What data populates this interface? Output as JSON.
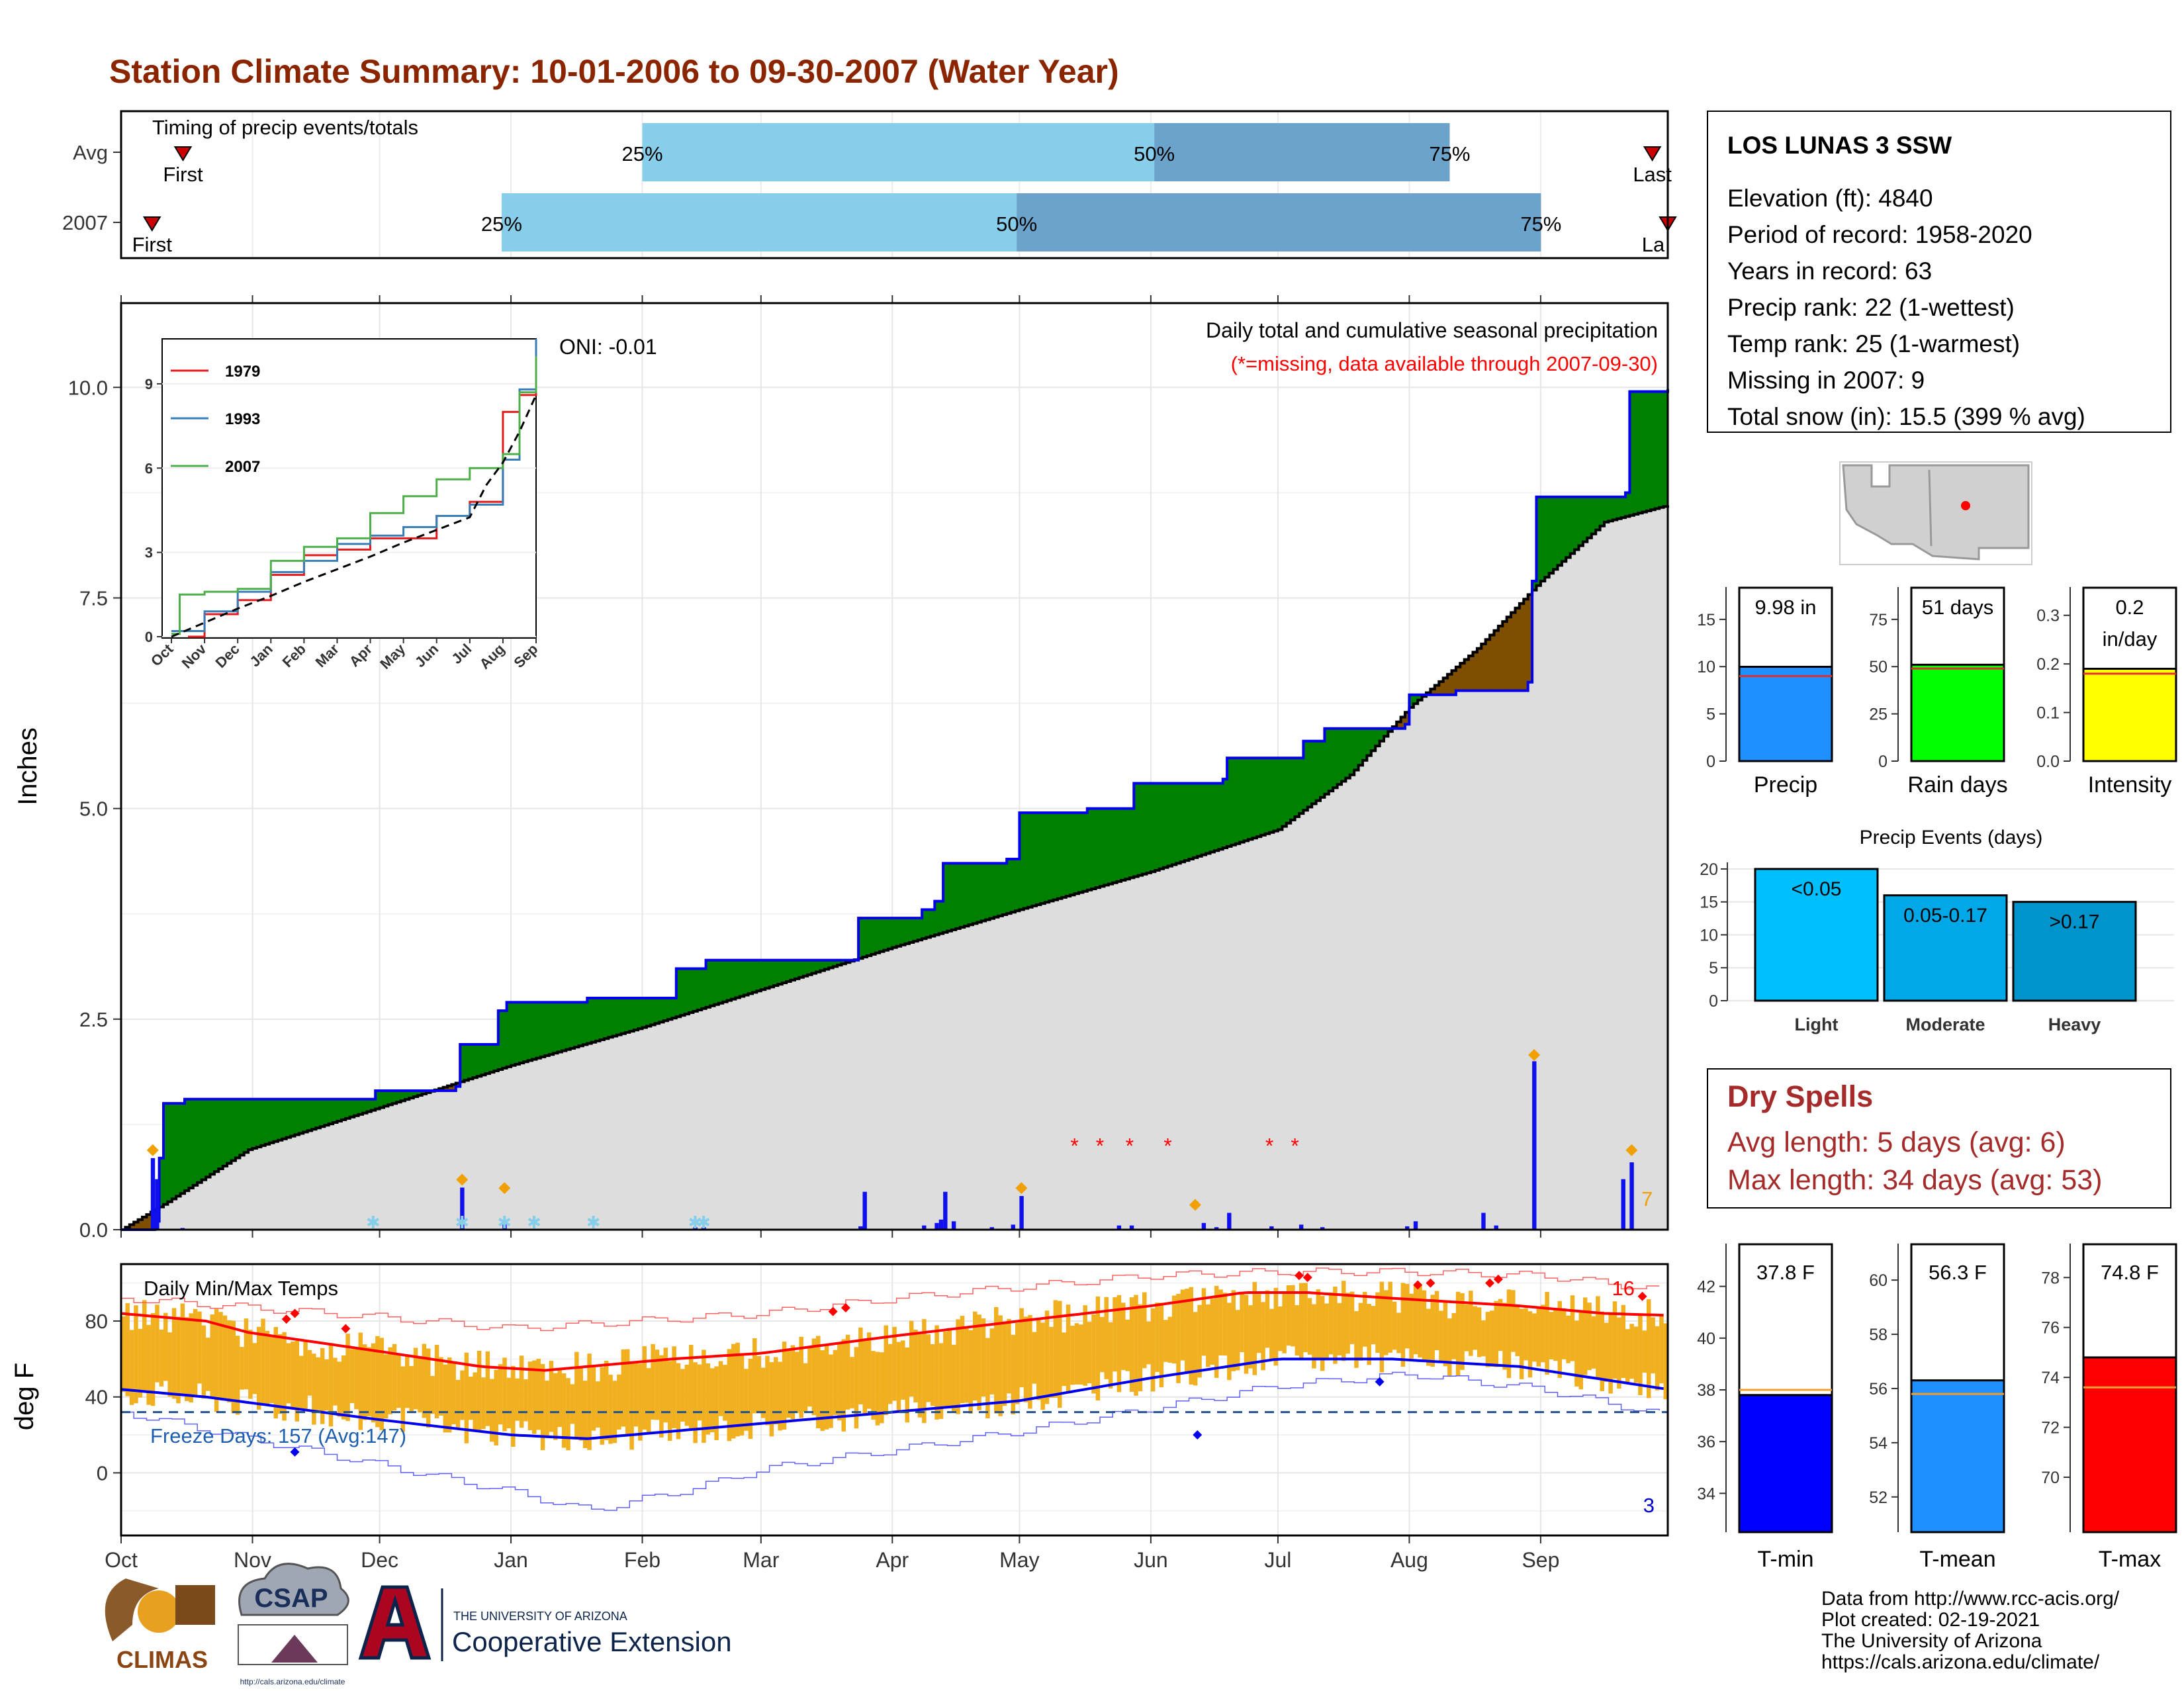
{
  "page": {
    "title": "Station Climate Summary: 10-01-2006 to 09-30-2007 (Water Year)",
    "credits": [
      "Data from http://www.rcc-acis.org/",
      "Plot created: 02-19-2021",
      "The University of Arizona",
      "https://cals.arizona.edu/climate/"
    ],
    "logos": {
      "climas": "CLIMAS",
      "csap": "CSAP",
      "csap_url": "http://cals.arizona.edu/climate",
      "ua_line1": "THE UNIVERSITY OF ARIZONA",
      "ua_line2": "Cooperative Extension"
    },
    "colors": {
      "title": "#8B2500",
      "green": "#008000",
      "brown": "#7F4F00",
      "grey": "#DDDDDD",
      "bar_blue": "#1010EE",
      "orange": "#F0A000",
      "light_blue": "#87CEEB",
      "mid_blue": "#6BA3CB",
      "red": "#FF0000",
      "dry_red": "#A52A2A"
    }
  },
  "station": {
    "name": "LOS LUNAS 3 SSW",
    "lines": [
      "Elevation (ft): 4840",
      "Period of record: 1958-2020",
      "Years in record: 63",
      "Precip rank: 22 (1-wettest)",
      "Temp rank: 25 (1-warmest)",
      "Missing in 2007: 9",
      "Total snow (in): 15.5 (399 % avg)"
    ]
  },
  "chart_data": [
    {
      "id": "timing",
      "type": "bar",
      "title": "Timing of precip events/totals",
      "rows": [
        {
          "label": "Avg",
          "first": "First",
          "last": "Last",
          "q25_label": "25%",
          "q50_label": "50%",
          "q75_label": "75%",
          "q25": 0.337,
          "q50": 0.668,
          "q75": 0.859,
          "first_pos": 0.04,
          "last_pos": 0.99
        },
        {
          "label": "2007",
          "first": "First",
          "last": "La",
          "q25_label": "25%",
          "q50_label": "50%",
          "q75_label": "75%",
          "q25": 0.246,
          "q50": 0.579,
          "q75": 0.918,
          "first_pos": 0.02,
          "last_pos": 1.0
        }
      ]
    },
    {
      "id": "precip_main",
      "type": "area",
      "title": "Daily total and cumulative seasonal precipitation",
      "subtitle": "(*=missing, data available through 2007-09-30)",
      "oni": "ONI: -0.01",
      "ylabel": "Inches",
      "ylim": [
        0,
        11
      ],
      "yticks": [
        "0.0",
        "2.5",
        "5.0",
        "7.5",
        "10.0"
      ],
      "months": [
        "Oct",
        "Nov",
        "Dec",
        "Jan",
        "Feb",
        "Mar",
        "Apr",
        "May",
        "Jun",
        "Jul",
        "Aug",
        "Sep"
      ],
      "month_start_days": [
        0,
        31,
        61,
        92,
        123,
        151,
        182,
        212,
        243,
        273,
        304,
        335
      ],
      "ndays": 365,
      "avg_cumulative": [
        [
          0,
          0
        ],
        [
          10,
          0.3
        ],
        [
          30,
          0.95
        ],
        [
          61,
          1.45
        ],
        [
          92,
          1.95
        ],
        [
          123,
          2.4
        ],
        [
          151,
          2.85
        ],
        [
          182,
          3.35
        ],
        [
          212,
          3.8
        ],
        [
          243,
          4.25
        ],
        [
          273,
          4.75
        ],
        [
          290,
          5.4
        ],
        [
          304,
          6.2
        ],
        [
          320,
          6.9
        ],
        [
          335,
          7.7
        ],
        [
          350,
          8.4
        ],
        [
          365,
          8.6
        ]
      ],
      "cumulative_2007": [
        [
          0,
          0
        ],
        [
          8,
          0.1
        ],
        [
          9,
          0.85
        ],
        [
          10,
          1.5
        ],
        [
          15,
          1.55
        ],
        [
          60,
          1.65
        ],
        [
          79,
          1.7
        ],
        [
          80,
          2.2
        ],
        [
          89,
          2.6
        ],
        [
          91,
          2.7
        ],
        [
          110,
          2.75
        ],
        [
          131,
          3.1
        ],
        [
          138,
          3.2
        ],
        [
          173,
          3.2
        ],
        [
          174,
          3.7
        ],
        [
          189,
          3.8
        ],
        [
          192,
          3.9
        ],
        [
          194,
          4.35
        ],
        [
          209,
          4.4
        ],
        [
          212,
          4.95
        ],
        [
          228,
          5.0
        ],
        [
          239,
          5.3
        ],
        [
          260,
          5.35
        ],
        [
          261,
          5.6
        ],
        [
          278,
          5.6
        ],
        [
          279,
          5.8
        ],
        [
          284,
          5.95
        ],
        [
          303,
          6.0
        ],
        [
          304,
          6.35
        ],
        [
          315,
          6.4
        ],
        [
          332,
          6.5
        ],
        [
          333,
          7.7
        ],
        [
          334,
          8.7
        ],
        [
          355,
          8.75
        ],
        [
          356,
          9.95
        ],
        [
          365,
          9.98
        ]
      ],
      "daily_bars": [
        [
          7,
          0.85
        ],
        [
          8,
          0.6
        ],
        [
          14,
          0.02
        ],
        [
          80,
          0.5
        ],
        [
          90,
          0.1
        ],
        [
          111,
          0.01
        ],
        [
          135,
          0.03
        ],
        [
          137,
          0.03
        ],
        [
          174,
          0.04
        ],
        [
          175,
          0.45
        ],
        [
          189,
          0.05
        ],
        [
          192,
          0.08
        ],
        [
          193,
          0.12
        ],
        [
          194,
          0.45
        ],
        [
          196,
          0.1
        ],
        [
          205,
          0.03
        ],
        [
          210,
          0.06
        ],
        [
          212,
          0.4
        ],
        [
          235,
          0.05
        ],
        [
          238,
          0.05
        ],
        [
          255,
          0.08
        ],
        [
          258,
          0.03
        ],
        [
          261,
          0.2
        ],
        [
          271,
          0.04
        ],
        [
          278,
          0.06
        ],
        [
          283,
          0.03
        ],
        [
          303,
          0.04
        ],
        [
          305,
          0.1
        ],
        [
          321,
          0.2
        ],
        [
          324,
          0.05
        ],
        [
          333,
          2.0
        ],
        [
          354,
          0.6
        ],
        [
          356,
          0.8
        ]
      ],
      "large_markers": [
        [
          7,
          0.85
        ],
        [
          80,
          0.5
        ],
        [
          90,
          0.4
        ],
        [
          212,
          0.4
        ],
        [
          253,
          0.2
        ],
        [
          333,
          1.98
        ],
        [
          356,
          0.85
        ]
      ],
      "snow_markers": [
        59,
        80,
        90,
        97,
        111,
        135,
        137
      ],
      "missing_markers": [
        225,
        231,
        238,
        247,
        271,
        277
      ],
      "count_label": "7"
    },
    {
      "id": "inset",
      "type": "line",
      "x_labels": [
        "Oct",
        "Nov",
        "Dec",
        "Jan",
        "Feb",
        "Mar",
        "Apr",
        "May",
        "Jun",
        "Jul",
        "Aug",
        "Sep"
      ],
      "yticks": [
        "0",
        "3",
        "6",
        "9"
      ],
      "ylim": [
        0,
        10.6
      ],
      "series": [
        {
          "name": "1979",
          "color": "#E41A1C",
          "values": [
            [
              0.5,
              0
            ],
            [
              1,
              0.8
            ],
            [
              2,
              1.3
            ],
            [
              3,
              2.2
            ],
            [
              4,
              2.9
            ],
            [
              5,
              3.1
            ],
            [
              6,
              3.5
            ],
            [
              7,
              3.5
            ],
            [
              8,
              4.3
            ],
            [
              9,
              4.8
            ],
            [
              10,
              8.0
            ],
            [
              10.5,
              8.6
            ],
            [
              11,
              9.5
            ]
          ]
        },
        {
          "name": "1993",
          "color": "#377EB8",
          "values": [
            [
              0,
              0.2
            ],
            [
              1,
              0.9
            ],
            [
              2,
              1.6
            ],
            [
              3,
              2.3
            ],
            [
              4,
              2.7
            ],
            [
              5,
              3.3
            ],
            [
              6,
              3.6
            ],
            [
              7,
              3.9
            ],
            [
              8,
              4.3
            ],
            [
              9,
              4.7
            ],
            [
              10,
              6.3
            ],
            [
              10.5,
              8.8
            ],
            [
              11,
              10.6
            ]
          ]
        },
        {
          "name": "2007",
          "color": "#4DAF4A",
          "values": [
            [
              0,
              0.1
            ],
            [
              0.25,
              1.5
            ],
            [
              1,
              1.6
            ],
            [
              2,
              1.7
            ],
            [
              3,
              2.7
            ],
            [
              4,
              3.2
            ],
            [
              5,
              3.5
            ],
            [
              6,
              4.4
            ],
            [
              7,
              5.0
            ],
            [
              8,
              5.6
            ],
            [
              9,
              6.0
            ],
            [
              10,
              6.5
            ],
            [
              10.5,
              8.7
            ],
            [
              11,
              9.98
            ]
          ]
        },
        {
          "name": "",
          "color": "#000000",
          "dash": true,
          "values": [
            [
              0,
              0
            ],
            [
              1,
              0.5
            ],
            [
              2,
              1.0
            ],
            [
              3,
              1.45
            ],
            [
              4,
              1.95
            ],
            [
              5,
              2.4
            ],
            [
              6,
              2.85
            ],
            [
              7,
              3.35
            ],
            [
              8,
              3.8
            ],
            [
              9,
              4.25
            ],
            [
              9.5,
              5.4
            ],
            [
              10,
              6.2
            ],
            [
              10.5,
              7.3
            ],
            [
              11,
              8.6
            ]
          ]
        }
      ]
    },
    {
      "id": "temps",
      "type": "area",
      "title": "Daily Min/Max Temps",
      "ylabel": "deg F",
      "ylim": [
        -33,
        110
      ],
      "yticks": [
        "0",
        "40",
        "80"
      ],
      "freeze_label": "Freeze Days: 157 (Avg:147)",
      "freeze_line": 32,
      "count_top": "16",
      "count_bottom": "3",
      "avg_max": [
        [
          0,
          84
        ],
        [
          20,
          80
        ],
        [
          30,
          74
        ],
        [
          61,
          64
        ],
        [
          85,
          56
        ],
        [
          100,
          54
        ],
        [
          130,
          60
        ],
        [
          151,
          63
        ],
        [
          182,
          72
        ],
        [
          212,
          80
        ],
        [
          243,
          88
        ],
        [
          265,
          95
        ],
        [
          280,
          95
        ],
        [
          300,
          92
        ],
        [
          330,
          88
        ],
        [
          350,
          84
        ],
        [
          365,
          83
        ]
      ],
      "avg_min": [
        [
          0,
          44
        ],
        [
          20,
          40
        ],
        [
          61,
          28
        ],
        [
          92,
          20
        ],
        [
          110,
          18
        ],
        [
          151,
          26
        ],
        [
          182,
          32
        ],
        [
          212,
          38
        ],
        [
          243,
          50
        ],
        [
          273,
          60
        ],
        [
          300,
          60
        ],
        [
          330,
          56
        ],
        [
          365,
          44
        ]
      ],
      "record_max": [
        [
          0,
          92
        ],
        [
          61,
          82
        ],
        [
          92,
          76
        ],
        [
          151,
          84
        ],
        [
          182,
          92
        ],
        [
          212,
          98
        ],
        [
          243,
          104
        ],
        [
          273,
          106
        ],
        [
          304,
          106
        ],
        [
          335,
          104
        ],
        [
          365,
          96
        ]
      ],
      "record_min": [
        [
          0,
          32
        ],
        [
          30,
          18
        ],
        [
          61,
          4
        ],
        [
          92,
          -10
        ],
        [
          110,
          -20
        ],
        [
          135,
          -8
        ],
        [
          151,
          2
        ],
        [
          182,
          12
        ],
        [
          212,
          22
        ],
        [
          243,
          34
        ],
        [
          273,
          46
        ],
        [
          304,
          52
        ],
        [
          335,
          44
        ],
        [
          365,
          30
        ]
      ],
      "hi_record_days": [
        [
          39,
          81
        ],
        [
          41,
          84
        ],
        [
          53,
          76
        ],
        [
          168,
          85
        ],
        [
          171,
          87
        ],
        [
          278,
          104
        ],
        [
          280,
          103
        ],
        [
          306,
          99
        ],
        [
          309,
          100
        ],
        [
          323,
          100
        ],
        [
          325,
          102
        ],
        [
          359,
          93
        ]
      ],
      "lo_record_days": [
        [
          41,
          11
        ],
        [
          254,
          20
        ],
        [
          297,
          48
        ]
      ]
    },
    {
      "id": "summary_bars",
      "type": "bar",
      "panels": [
        {
          "name": "Precip",
          "label": "9.98 in",
          "value": 9.98,
          "avg": 9.0,
          "ticks": [
            "0",
            "5",
            "10",
            "15"
          ],
          "min": 0,
          "max": 18,
          "color": "#1E90FF"
        },
        {
          "name": "Rain days",
          "label": "51 days",
          "value": 51,
          "avg": 49,
          "ticks": [
            "0",
            "25",
            "50",
            "75"
          ],
          "min": 0,
          "max": 90,
          "color": "#00FF00"
        },
        {
          "name": "Intensity",
          "label": "0.2 in/day",
          "value": 0.19,
          "avg": 0.18,
          "ticks": [
            "0.0",
            "0.1",
            "0.2",
            "0.3"
          ],
          "min": 0,
          "max": 0.35,
          "color": "#FFFF00"
        }
      ]
    },
    {
      "id": "precip_events",
      "type": "bar",
      "title": "Precip Events (days)",
      "categories": [
        "Light",
        "Moderate",
        "Heavy"
      ],
      "bar_labels": [
        "<0.05",
        "0.05-0.17",
        ">0.17"
      ],
      "values": [
        20,
        16,
        15
      ],
      "ticks": [
        "0",
        "5",
        "10",
        "15",
        "20"
      ],
      "ylim": [
        0,
        21
      ],
      "colors": [
        "#00BFFF",
        "#00A8E8",
        "#0094CC"
      ]
    },
    {
      "id": "temp_bars",
      "type": "bar",
      "panels": [
        {
          "name": "T-min",
          "label": "37.8 F",
          "value": 37.8,
          "avg": 38.0,
          "ticks": [
            "34",
            "36",
            "38",
            "40",
            "42"
          ],
          "min": 32.5,
          "max": 43.5,
          "color": "#0000FF"
        },
        {
          "name": "T-mean",
          "label": "56.3 F",
          "value": 56.3,
          "avg": 55.8,
          "ticks": [
            "52",
            "54",
            "56",
            "58",
            "60"
          ],
          "min": 50.7,
          "max": 61.2,
          "color": "#1E90FF"
        },
        {
          "name": "T-max",
          "label": "74.8 F",
          "value": 74.8,
          "avg": 73.6,
          "ticks": [
            "70",
            "72",
            "74",
            "76",
            "78"
          ],
          "min": 67.8,
          "max": 79.2,
          "color": "#FF0000"
        }
      ]
    }
  ],
  "dry_spells": {
    "title": "Dry Spells",
    "lines": [
      "Avg length: 5 days (avg: 6)",
      "Max length: 34 days (avg: 53)"
    ]
  }
}
